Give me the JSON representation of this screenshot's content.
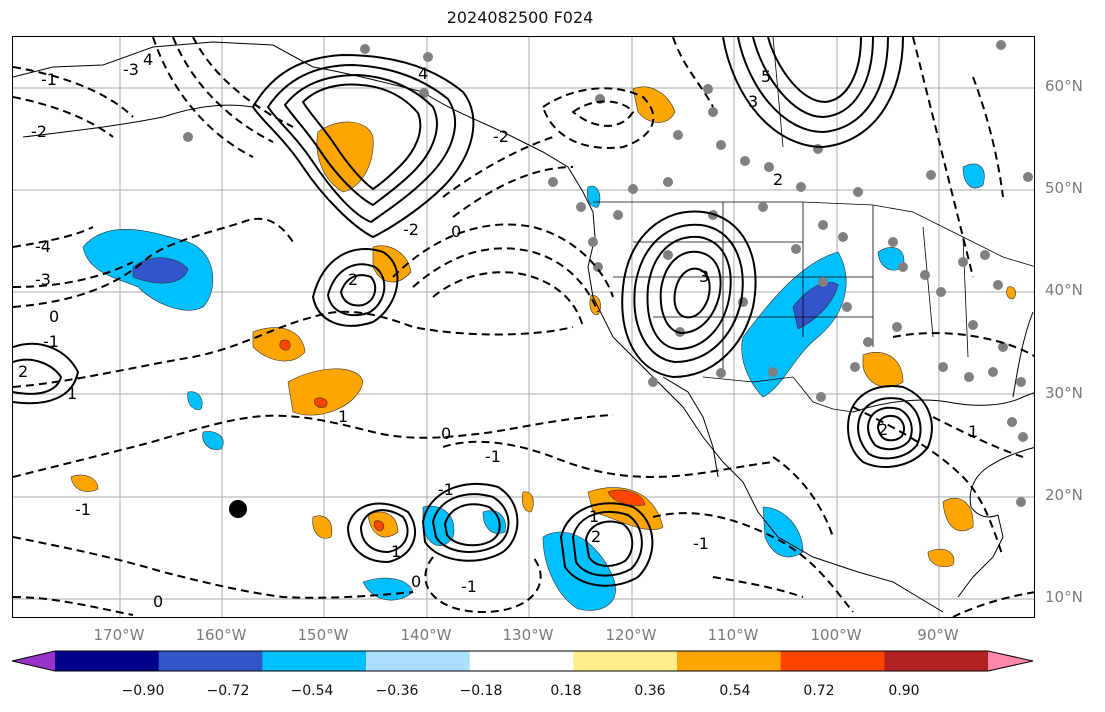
{
  "title": "2024082500 F024",
  "lat_labels": [
    "60°N",
    "50°N",
    "40°N",
    "30°N",
    "20°N",
    "10°N"
  ],
  "lon_labels": [
    "170°W",
    "160°W",
    "150°W",
    "140°W",
    "130°W",
    "120°W",
    "110°W",
    "100°W",
    "90°W"
  ],
  "contour_labels": [
    "4",
    "-4",
    "-3",
    "0",
    "-1",
    "2",
    "1",
    "-1",
    "-2",
    "-3",
    "4",
    "3",
    "5",
    "2",
    "3",
    "2",
    "-2",
    "0",
    "-1",
    "-1",
    "1",
    "2",
    "1",
    "2",
    "1",
    "-1",
    "0",
    "0",
    "-1",
    "-2",
    "0",
    "1",
    "-1"
  ],
  "colorbar": {
    "ticks": [
      "−0.90",
      "−0.72",
      "−0.54",
      "−0.36",
      "−0.18",
      "0.18",
      "0.36",
      "0.54",
      "0.72",
      "0.90"
    ],
    "colors": [
      "#9933cc",
      "#00008b",
      "#3355cc",
      "#00bfff",
      "#aadfff",
      "#ffffff",
      "#ffec8b",
      "#ffa500",
      "#ff4500",
      "#b22222",
      "#ff88aa"
    ]
  }
}
